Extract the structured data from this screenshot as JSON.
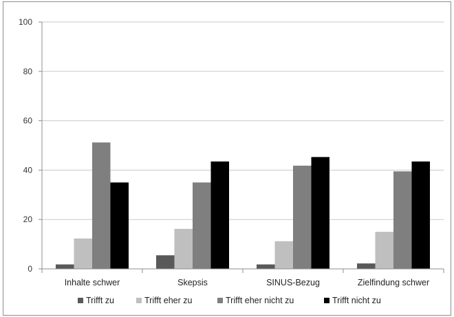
{
  "chart_data": {
    "type": "bar",
    "categories": [
      "Inhalte schwer",
      "Skepsis",
      "SINUS-Bezug",
      "Zielfindung schwer"
    ],
    "series": [
      {
        "name": "Trifft zu",
        "color": "#595959",
        "values": [
          1.8,
          5.5,
          1.8,
          2.2
        ]
      },
      {
        "name": "Trifft eher zu",
        "color": "#bfbfbf",
        "values": [
          12.3,
          16.2,
          11.2,
          15.0
        ]
      },
      {
        "name": "Trifft eher nicht zu",
        "color": "#7f7f7f",
        "values": [
          51.2,
          35.0,
          41.8,
          39.5
        ]
      },
      {
        "name": "Trifft nicht zu",
        "color": "#000000",
        "values": [
          35.0,
          43.5,
          45.3,
          43.5
        ]
      }
    ],
    "ylim": [
      0,
      100
    ],
    "yticks": [
      0,
      20,
      40,
      60,
      80,
      100
    ],
    "grid": true,
    "legend_position": "bottom"
  }
}
